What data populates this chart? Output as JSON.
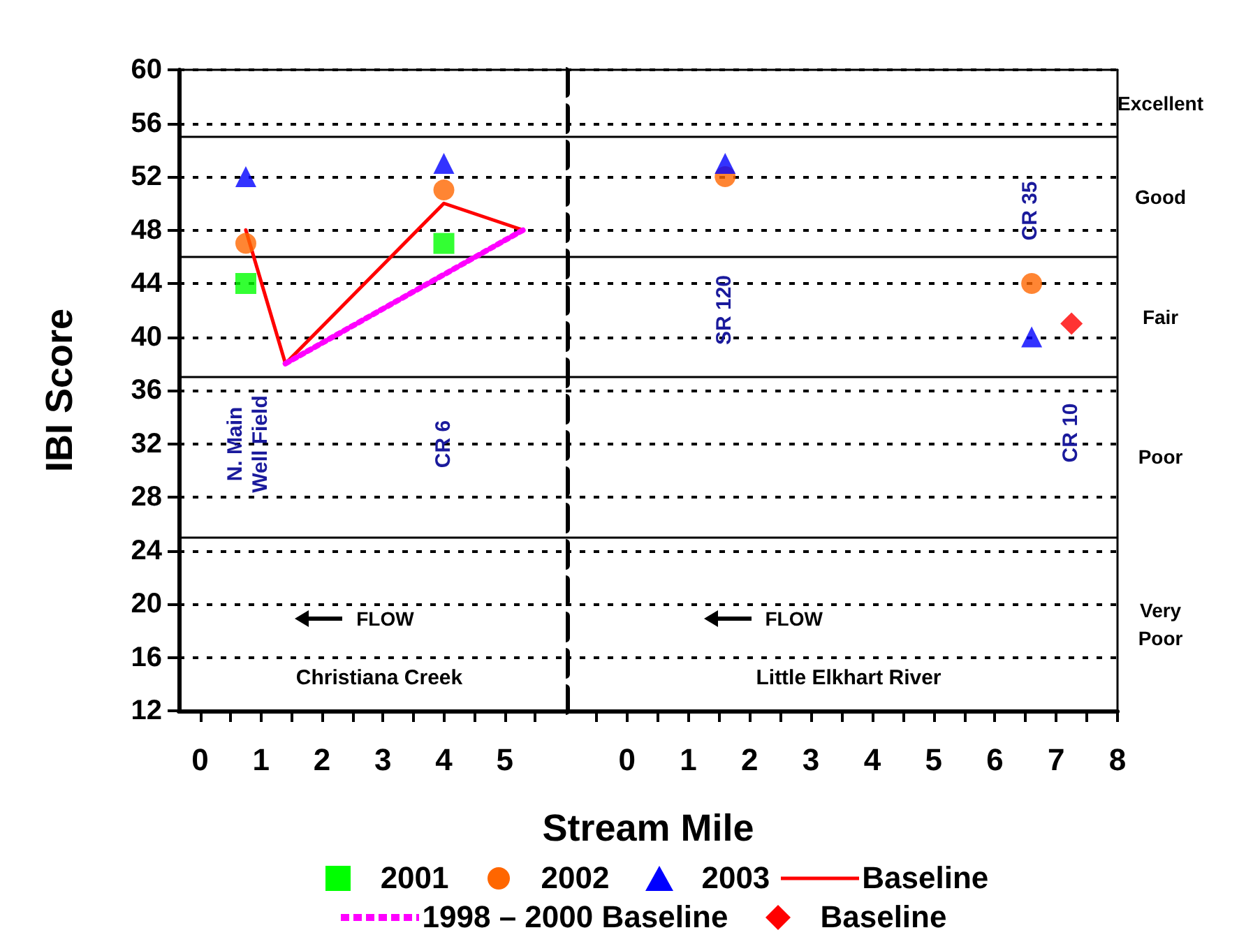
{
  "chart_data": [
    {
      "type": "scatter",
      "title": "Christiana Creek",
      "xlabel": "Stream Mile",
      "ylabel": "IBI Score",
      "xlim": [
        -0.35,
        6
      ],
      "ylim": [
        12,
        60
      ],
      "xticks": [
        0,
        {
          "value": 0.5,
          "label": null
        },
        1,
        {
          "value": 1.5,
          "label": null
        },
        2,
        {
          "value": 2.5,
          "label": null
        },
        3,
        {
          "value": 3.5,
          "label": null
        },
        4,
        {
          "value": 4.5,
          "label": null
        },
        5,
        {
          "value": 5.5,
          "label": null
        }
      ],
      "yticks": [
        12,
        16,
        20,
        24,
        28,
        32,
        36,
        40,
        44,
        48,
        52,
        56,
        60
      ],
      "grid": "y",
      "legend": "bottom",
      "ref_lines": [
        {
          "axis": "y",
          "value": 25
        },
        {
          "axis": "y",
          "value": 37
        },
        {
          "axis": "y",
          "value": 46
        },
        {
          "axis": "y",
          "value": 55
        }
      ],
      "annotations": [
        "N. Main Well Field",
        "CR 6",
        "FLOW"
      ],
      "series": [
        {
          "name": "2001",
          "type": "scatter",
          "marker": "square",
          "color": "#00ff00",
          "x": [
            0.75,
            4.0
          ],
          "values": [
            44,
            47
          ]
        },
        {
          "name": "2002",
          "type": "scatter",
          "marker": "circle",
          "color": "#ff6600",
          "x": [
            0.75,
            4.0
          ],
          "values": [
            47,
            51
          ]
        },
        {
          "name": "2003",
          "type": "scatter",
          "marker": "triangle",
          "color": "#0000ff",
          "x": [
            0.75,
            4.0
          ],
          "values": [
            52,
            53
          ]
        },
        {
          "name": "Baseline",
          "type": "line",
          "marker": "none",
          "line_style": "solid",
          "color": "#ff0000",
          "x": [
            0.75,
            1.4,
            4.0,
            5.3
          ],
          "values": [
            48,
            38,
            50,
            48
          ]
        },
        {
          "name": "1998 – 2000 Baseline",
          "type": "line",
          "marker": "none",
          "line_style": "dotted",
          "color": "#ff00ff",
          "x": [
            1.4,
            5.3
          ],
          "values": [
            38,
            48
          ]
        }
      ]
    },
    {
      "type": "scatter",
      "title": "Little Elkhart River",
      "xlim": [
        -1,
        8
      ],
      "ylim": [
        12,
        60
      ],
      "tick_labels": "x",
      "xticks": [
        {
          "value": -0.5,
          "label": null
        },
        0,
        {
          "value": 0.5,
          "label": null
        },
        1,
        {
          "value": 1.5,
          "label": null
        },
        2,
        {
          "value": 2.5,
          "label": null
        },
        3,
        {
          "value": 3.5,
          "label": null
        },
        4,
        {
          "value": 4.5,
          "label": null
        },
        5,
        {
          "value": 5.5,
          "label": null
        },
        6,
        {
          "value": 6.5,
          "label": null
        },
        7,
        {
          "value": 7.5,
          "label": null
        },
        8
      ],
      "yticks": [
        12,
        16,
        20,
        24,
        28,
        32,
        36,
        40,
        44,
        48,
        52,
        56,
        60
      ],
      "grid": "y",
      "legend": "bottom",
      "ref_lines": [
        {
          "axis": "y",
          "value": 25
        },
        {
          "axis": "y",
          "value": 37
        },
        {
          "axis": "y",
          "value": 46
        },
        {
          "axis": "y",
          "value": 55
        }
      ],
      "annotations": [
        "SR 120",
        "CR 35",
        "CR 10",
        "FLOW",
        "Excellent",
        "Good",
        "Fair",
        "Poor",
        "Very Poor"
      ],
      "series": [
        {
          "name": "2002",
          "type": "scatter",
          "marker": "circle",
          "color": "#ff6600",
          "x": [
            1.6,
            6.6
          ],
          "values": [
            52,
            44
          ]
        },
        {
          "name": "2003",
          "type": "scatter",
          "marker": "triangle",
          "color": "#0000ff",
          "x": [
            1.6,
            6.6
          ],
          "values": [
            53,
            40
          ]
        },
        {
          "name": "Baseline",
          "type": "scatter",
          "marker": "diamond",
          "color": "#ff0000",
          "x": [
            7.25
          ],
          "values": [
            41
          ]
        }
      ]
    }
  ]
}
